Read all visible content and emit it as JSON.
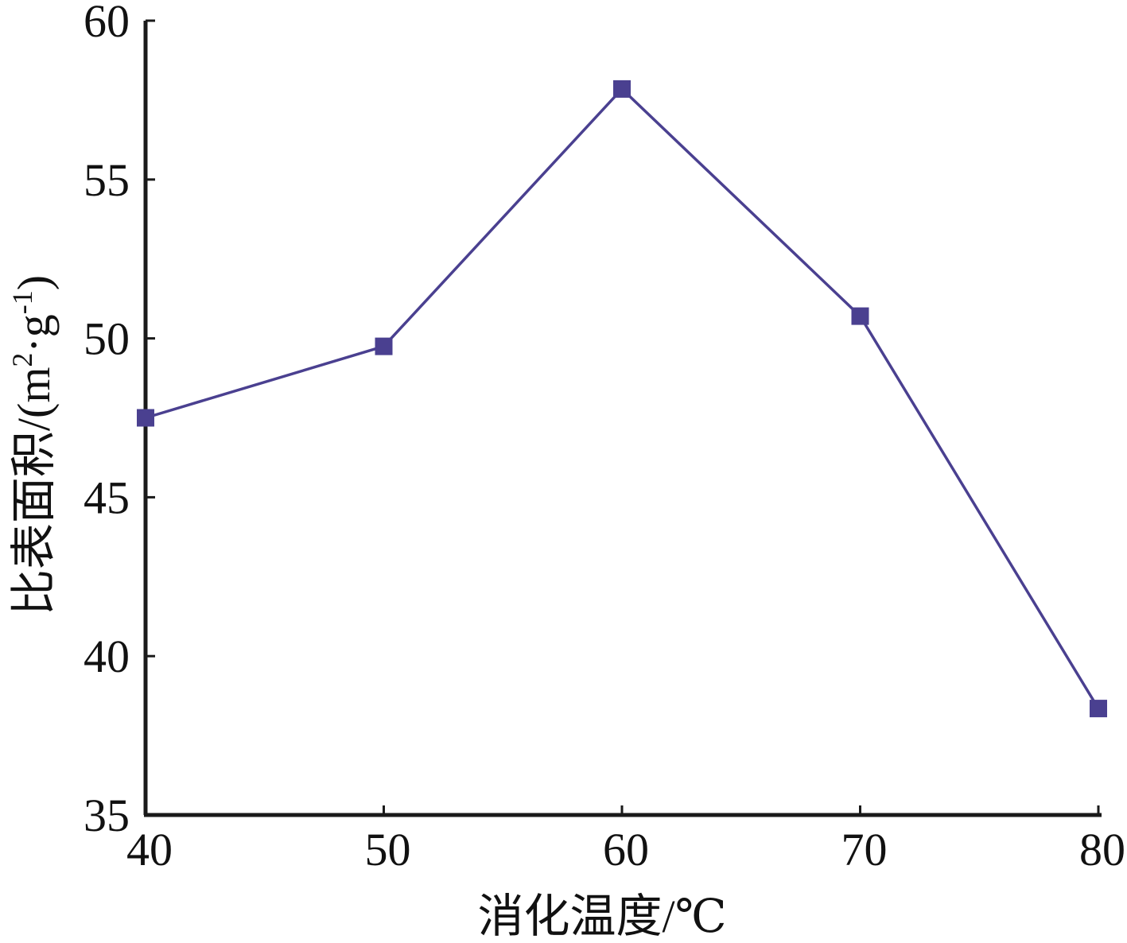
{
  "chart_data": {
    "type": "line",
    "title": "",
    "xlabel": "消化温度/℃",
    "ylabel_text": "比表面积/(m",
    "ylabel_sup1": "2",
    "ylabel_mid": "·g",
    "ylabel_sup2": "-1",
    "ylabel_end": ")",
    "ylabel": "比表面积/(m²·g⁻¹)",
    "x": [
      40,
      50,
      60,
      70,
      80
    ],
    "series": [
      {
        "values": [
          47.5,
          49.75,
          57.85,
          50.7,
          38.35
        ],
        "color": "#4a4090",
        "marker": "square"
      }
    ],
    "xlim": [
      40,
      80
    ],
    "ylim": [
      35,
      60
    ],
    "xticks": [
      "40",
      "50",
      "60",
      "70",
      "80"
    ],
    "yticks": [
      "35",
      "40",
      "45",
      "50",
      "55",
      "60"
    ],
    "grid": false,
    "legend": "none"
  }
}
